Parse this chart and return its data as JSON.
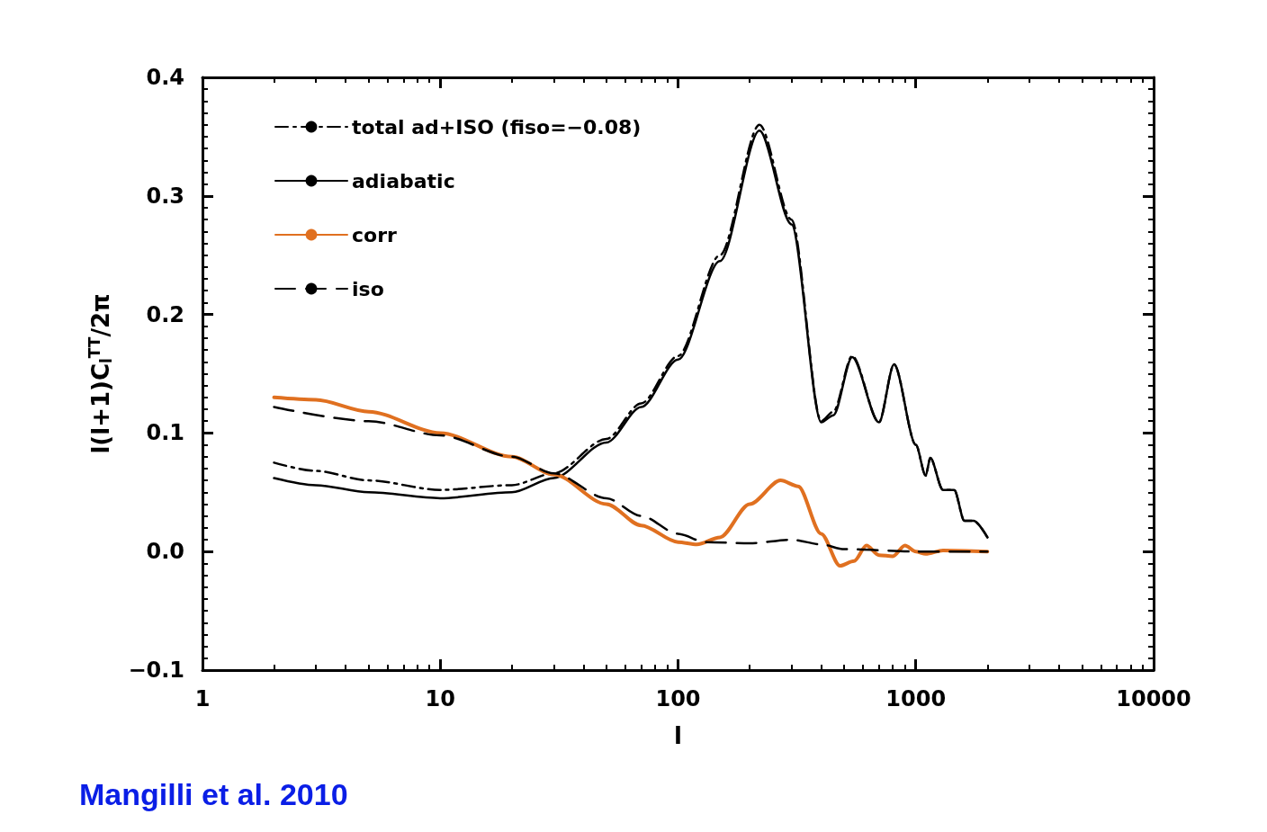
{
  "chart_data": {
    "type": "line",
    "xlabel": "l",
    "ylabel": "l(l+1)C$_{l}$$^{TT}$/2π",
    "log": "x",
    "xlim": [
      1,
      10000
    ],
    "xticks": [
      1,
      10,
      100,
      1000,
      10000
    ],
    "ylim": [
      -0.1,
      0.4
    ],
    "yticks": [
      {
        "value": -0.1,
        "label": "−0.1"
      },
      {
        "value": 0,
        "label": "0.0"
      },
      0.1,
      0.2,
      0.3,
      0.4
    ],
    "grid": false,
    "legend": "top left",
    "marker": "none",
    "annotations": [
      "Mangilli et al. 2010"
    ],
    "series": [
      {
        "name": "total ad+ISO (fiso=−0.08)",
        "color": "#000000",
        "line_style": "dashdot",
        "x": [
          2,
          3,
          5,
          10,
          20,
          30,
          50,
          70,
          100,
          150,
          220,
          300,
          400,
          450,
          540,
          700,
          810,
          1000,
          1100,
          1150,
          1300,
          1450,
          1600,
          1750,
          2000
        ],
        "values": [
          0.075,
          0.068,
          0.06,
          0.052,
          0.056,
          0.066,
          0.095,
          0.125,
          0.165,
          0.25,
          0.36,
          0.28,
          0.11,
          0.118,
          0.165,
          0.109,
          0.158,
          0.09,
          0.064,
          0.079,
          0.052,
          0.052,
          0.026,
          0.026,
          0.012
        ]
      },
      {
        "name": "adiabatic",
        "color": "#000000",
        "line_style": "solid",
        "x": [
          2,
          3,
          5,
          10,
          20,
          30,
          50,
          70,
          100,
          150,
          220,
          300,
          400,
          450,
          540,
          700,
          810,
          1000,
          1100,
          1150,
          1300,
          1450,
          1600,
          1750,
          2000
        ],
        "values": [
          0.062,
          0.056,
          0.05,
          0.045,
          0.05,
          0.062,
          0.092,
          0.122,
          0.162,
          0.245,
          0.355,
          0.276,
          0.109,
          0.115,
          0.164,
          0.109,
          0.158,
          0.09,
          0.064,
          0.079,
          0.052,
          0.052,
          0.026,
          0.026,
          0.012
        ]
      },
      {
        "name": "corr",
        "color": "#e07020",
        "line_style": "solid",
        "x": [
          2,
          3,
          5,
          10,
          20,
          30,
          50,
          70,
          100,
          120,
          150,
          200,
          270,
          320,
          400,
          480,
          550,
          620,
          700,
          800,
          900,
          1000,
          1100,
          1300,
          2000
        ],
        "values": [
          0.13,
          0.128,
          0.118,
          0.1,
          0.08,
          0.065,
          0.04,
          0.022,
          0.008,
          0.006,
          0.012,
          0.04,
          0.06,
          0.055,
          0.015,
          -0.012,
          -0.008,
          0.005,
          -0.003,
          -0.004,
          0.005,
          0,
          -0.002,
          0.001,
          0
        ]
      },
      {
        "name": "iso",
        "color": "#000000",
        "line_style": "dashed",
        "x": [
          2,
          5,
          10,
          20,
          30,
          50,
          70,
          100,
          130,
          200,
          300,
          400,
          500,
          1000,
          2000
        ],
        "values": [
          0.122,
          0.11,
          0.098,
          0.08,
          0.066,
          0.045,
          0.03,
          0.015,
          0.008,
          0.007,
          0.01,
          0.006,
          0.002,
          0,
          0
        ]
      }
    ]
  }
}
